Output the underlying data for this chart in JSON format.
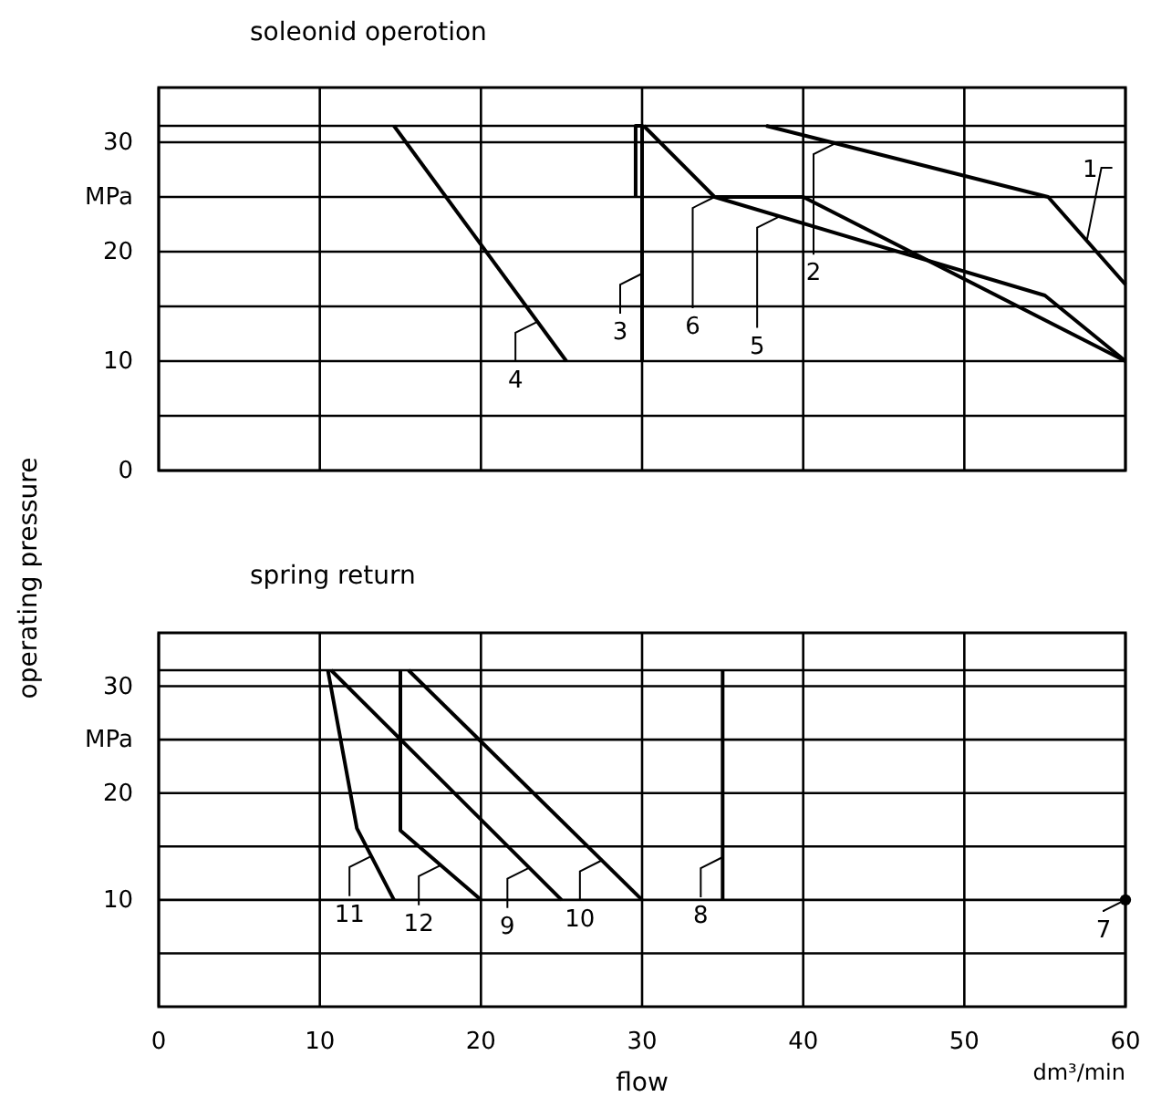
{
  "chart_data": [
    {
      "type": "line",
      "title": "soleonid operotion",
      "xlim": [
        0,
        60
      ],
      "xticks": [
        0,
        10,
        20,
        30,
        40,
        50,
        60
      ],
      "ylim": [
        0,
        35
      ],
      "yticks": [
        0,
        {
          "value": 5,
          "label": null
        },
        10,
        {
          "value": 15,
          "label": null
        },
        20,
        {
          "value": 25,
          "label": "MPa"
        },
        30,
        {
          "value": 31.5,
          "label": null
        }
      ],
      "tick_labels": "y",
      "grid": true,
      "line_style": "solid",
      "marker": "none",
      "series": [
        {
          "color": "#000000",
          "x": [
            37.7,
            55.2,
            60
          ],
          "values": [
            31.5,
            25,
            17
          ]
        },
        {
          "color": "#000000",
          "x": [
            40,
            60
          ],
          "values": [
            25,
            10
          ]
        },
        {
          "color": "#000000",
          "x": [
            29.6,
            29.6,
            30,
            30
          ],
          "values": [
            25,
            31.5,
            31.5,
            10
          ]
        },
        {
          "color": "#000000",
          "x": [
            14.6,
            25.3
          ],
          "values": [
            31.5,
            10
          ]
        },
        {
          "color": "#000000",
          "x": [
            30.1,
            34.5,
            55,
            60
          ],
          "values": [
            31.5,
            25,
            16,
            10
          ]
        },
        {
          "color": "#000000",
          "x": [
            34.5,
            40
          ],
          "values": [
            25,
            25
          ]
        }
      ],
      "annotations": [
        {
          "text": "1",
          "x": 57.6,
          "y": 21
        },
        {
          "text": "2",
          "x": 42,
          "y": 29.9
        },
        {
          "text": "5",
          "x": 38.5,
          "y": 23.2
        },
        {
          "text": "6",
          "x": 34.5,
          "y": 25
        },
        {
          "text": "3",
          "x": 30,
          "y": 18
        },
        {
          "text": "4",
          "x": 23.5,
          "y": 13.6
        }
      ]
    },
    {
      "type": "line",
      "title": "spring return",
      "xlabel": "flow",
      "ylabel": "operating pressure",
      "xlim": [
        0,
        60
      ],
      "xticks": [
        0,
        10,
        20,
        30,
        40,
        50,
        60
      ],
      "ylim": [
        0,
        35
      ],
      "yticks": [
        {
          "value": 5,
          "label": null
        },
        10,
        {
          "value": 15,
          "label": null
        },
        20,
        {
          "value": 25,
          "label": "MPa"
        },
        30,
        {
          "value": 31.5,
          "label": null
        }
      ],
      "grid": true,
      "line_style": "solid",
      "marker": "none",
      "series": [
        {
          "color": "#000000",
          "x": [
            10.5,
            12.3,
            14.6
          ],
          "values": [
            31.5,
            16.7,
            10
          ]
        },
        {
          "color": "#000000",
          "x": [
            15,
            15,
            20
          ],
          "values": [
            31.5,
            16.5,
            10
          ]
        },
        {
          "color": "#000000",
          "x": [
            10.7,
            25
          ],
          "values": [
            31.5,
            10
          ]
        },
        {
          "color": "#000000",
          "x": [
            15.5,
            30
          ],
          "values": [
            31.5,
            10
          ]
        },
        {
          "color": "#000000",
          "x": [
            35,
            35
          ],
          "values": [
            31.5,
            10
          ]
        },
        {
          "color": "#000000",
          "type": "scatter",
          "marker": "circle",
          "x": [
            60
          ],
          "values": [
            10
          ]
        }
      ],
      "annotations": [
        {
          "text": "11",
          "x": 13.2,
          "y": 14.1
        },
        {
          "text": "12",
          "x": 17.5,
          "y": 13.25
        },
        {
          "text": "9",
          "x": 23,
          "y": 13
        },
        {
          "text": "10",
          "x": 27.5,
          "y": 13.7
        },
        {
          "text": "8",
          "x": 35,
          "y": 14
        },
        {
          "text": "7",
          "x": 60,
          "y": 10
        },
        "dm³/min"
      ]
    }
  ]
}
